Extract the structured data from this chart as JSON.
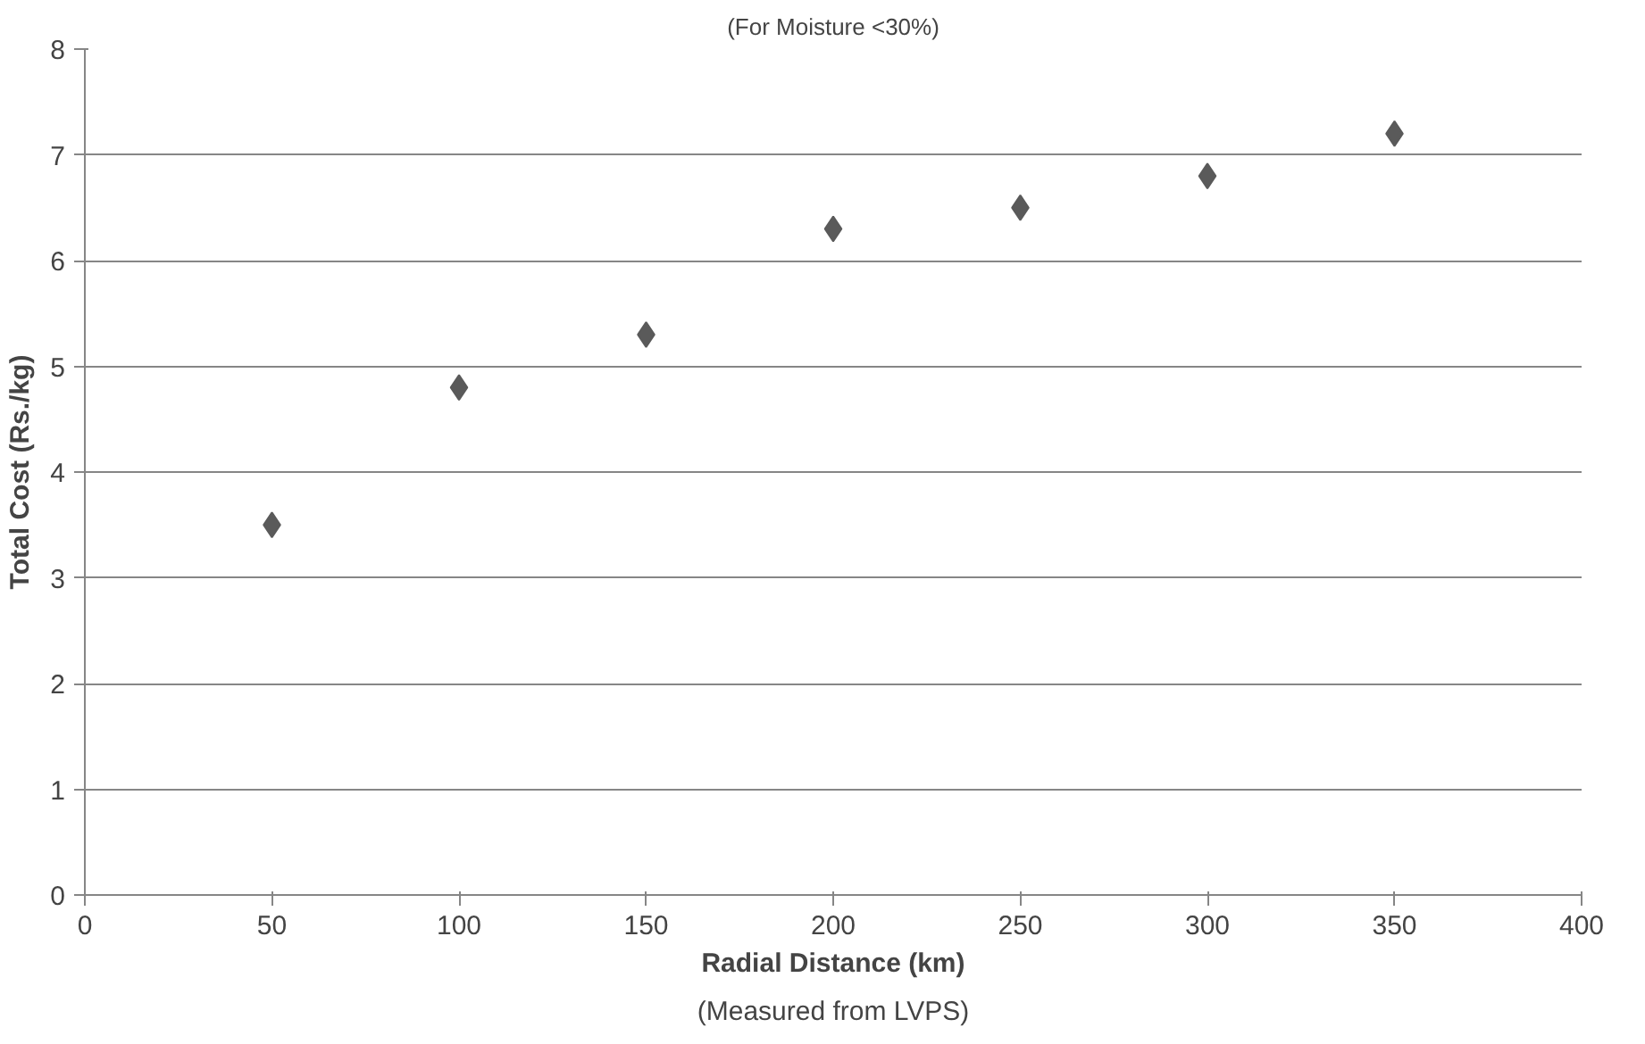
{
  "chart_data": {
    "type": "scatter",
    "title": "(For Moisture <30%)",
    "xlabel": "Radial Distance (km)",
    "ylabel": "Total Cost (Rs./kg)",
    "annotations": [
      "(Measured from LVPS)"
    ],
    "x": [
      50,
      100,
      150,
      200,
      250,
      300,
      350
    ],
    "series": [
      {
        "color": "#5a5a5a",
        "values": [
          3.5,
          4.8,
          5.3,
          6.3,
          6.5,
          6.8,
          7.2
        ]
      }
    ],
    "xlim": [
      0,
      400
    ],
    "xticks": [
      0,
      50,
      100,
      150,
      200,
      250,
      300,
      350,
      400
    ],
    "ylim": [
      0,
      8
    ],
    "yticks": [
      0,
      1,
      2,
      3,
      4,
      5,
      6,
      7,
      8
    ],
    "grid": "y",
    "marker": "diamond"
  }
}
